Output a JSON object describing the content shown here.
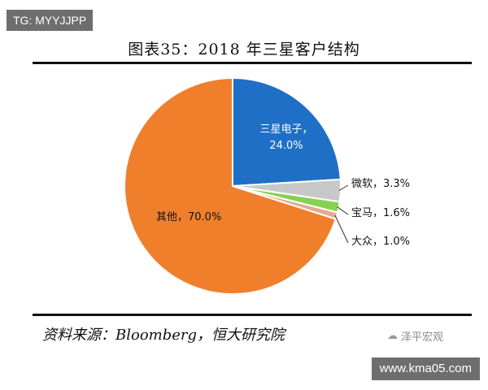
{
  "watermark_top": "TG: MYYJJPP",
  "watermark_bottom": "www.kma05.com",
  "source": "资料来源：Bloomberg，恒大研究院",
  "brand": "泽平宏观",
  "chart_data": {
    "type": "pie",
    "title": "图表35：2018 年三星客户结构",
    "slices": [
      {
        "name": "三星电子",
        "value": 24.0,
        "label": "24.0%",
        "color": "#1f6fc6"
      },
      {
        "name": "微软",
        "value": 3.3,
        "label": "微软，3.3%",
        "color": "#c8c8c8"
      },
      {
        "name": "宝马",
        "value": 1.6,
        "label": "宝马，1.6%",
        "color": "#86d152"
      },
      {
        "name": "大众",
        "value": 1.0,
        "label": "大众，1.0%",
        "color": "#e6a98a"
      },
      {
        "name": "其他",
        "value": 70.0,
        "label": "其他，70.0%",
        "color": "#f07f2c"
      }
    ],
    "start_angle_deg": 0,
    "direction": "clockwise",
    "legend": "none"
  }
}
